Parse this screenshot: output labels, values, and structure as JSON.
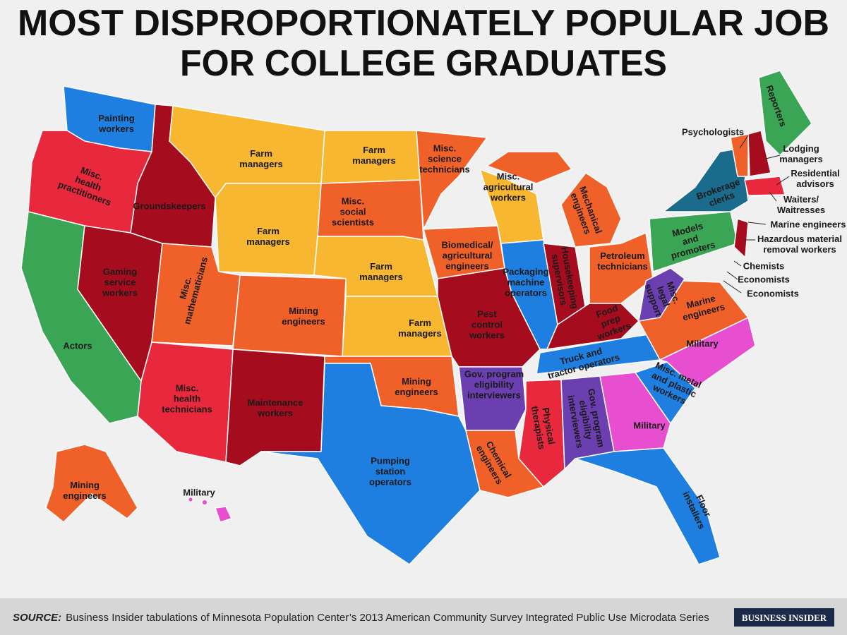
{
  "header": {
    "title_lines": [
      "MOST DISPROPORTIONATELY POPULAR JOB",
      "FOR COLLEGE GRADUATES"
    ]
  },
  "labels": [
    [
      "Painting",
      "workers"
    ],
    [
      "Farm",
      "managers"
    ],
    [
      "Farm",
      "managers"
    ],
    [
      "Misc.",
      "science",
      "technicians"
    ],
    [
      "Misc.",
      "health",
      "practitioners"
    ],
    [
      "Groundskeepers"
    ],
    [
      "Misc.",
      "agricultural",
      "workers"
    ],
    [
      "Misc.",
      "social",
      "scientists"
    ],
    [
      "Farm",
      "managers"
    ],
    [
      "Mechanical",
      "engineers"
    ],
    [
      "Gaming",
      "service",
      "workers"
    ],
    [
      "Misc.",
      "mathematicians"
    ],
    [
      "Biomedical/",
      "agricultural",
      "engineers"
    ],
    [
      "Farm",
      "managers"
    ],
    [
      "Packaging",
      "machine",
      "operators"
    ],
    [
      "Housekeeping",
      "supervisors"
    ],
    [
      "Petroleum",
      "technicians"
    ],
    [
      "Misc.",
      "legal",
      "support"
    ],
    [
      "Mining",
      "engineers"
    ],
    [
      "Farm",
      "managers"
    ],
    [
      "Pest",
      "control",
      "workers"
    ],
    [
      "Food",
      "prep",
      "workers"
    ],
    [
      "Marine",
      "engineers"
    ],
    [
      "Actors"
    ],
    [
      "Military"
    ],
    [
      "Truck and",
      "tractor operators"
    ],
    [
      "Gov. program",
      "eligibility",
      "interviewers"
    ],
    [
      "Misc. metal",
      "and plastic",
      "workers"
    ],
    [
      "Mining",
      "engineers"
    ],
    [
      "Misc.",
      "health",
      "technicians"
    ],
    [
      "Maintenance",
      "workers"
    ],
    [
      "Physical",
      "therapists"
    ],
    [
      "Gov. program",
      "eligibility",
      "interviewers"
    ],
    [
      "Military"
    ],
    [
      "Chemical",
      "engineers"
    ],
    [
      "Pumping",
      "station",
      "operators"
    ],
    [
      "Mining",
      "engineers"
    ],
    [
      "Military"
    ],
    [
      "Floor",
      "installers"
    ],
    [
      "Reporters"
    ],
    [
      "Psychologists"
    ],
    [
      "Lodging",
      "managers"
    ],
    [
      "Residential",
      "advisors"
    ],
    [
      "Brokerage",
      "clerks"
    ],
    [
      "Waiters/",
      "Waitresses"
    ],
    [
      "Models",
      "and",
      "promoters"
    ],
    [
      "Marine engineers"
    ],
    [
      "Hazardous material",
      "removal workers"
    ],
    [
      "Chemists"
    ],
    [
      "Economists"
    ],
    [
      "Economists"
    ]
  ],
  "footer": {
    "source_label": "SOURCE:",
    "source_text": "Business Insider tabulations of Minnesota Population Center’s 2013 American Community Survey Integrated Public Use Microdata Series",
    "brand": "BUSINESS INSIDER"
  }
}
